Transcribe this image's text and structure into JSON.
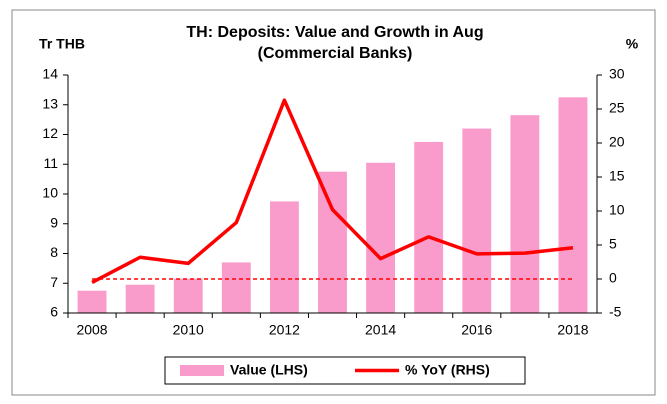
{
  "chart_data": {
    "type": "bar_line",
    "title": "TH: Deposits: Value and Growth in Aug",
    "subtitle": "(Commercial Banks)",
    "y_label": "Tr THB",
    "y2_label": "%",
    "categories": [
      "2008",
      null,
      "2010",
      null,
      "2012",
      null,
      "2014",
      null,
      "2016",
      null,
      "2018"
    ],
    "series": [
      {
        "name": "Value (LHS)",
        "type": "bar",
        "color": "#f99bcb",
        "axis": "y",
        "values": [
          6.75,
          6.95,
          7.15,
          7.7,
          9.75,
          10.75,
          11.05,
          11.75,
          12.2,
          12.65,
          13.25
        ]
      },
      {
        "name": "% YoY (RHS)",
        "type": "line",
        "color": "#ff0000",
        "axis": "y2",
        "values": [
          -0.5,
          3.2,
          2.3,
          8.3,
          26.3,
          10.2,
          3.0,
          6.2,
          3.7,
          3.8,
          4.6
        ]
      }
    ],
    "ylim": [
      6,
      14
    ],
    "yticks": [
      6,
      7,
      8,
      9,
      10,
      11,
      12,
      13,
      14
    ],
    "y2lim": [
      -5,
      30
    ],
    "y2ticks": [
      -5,
      0,
      5,
      10,
      15,
      20,
      25,
      30
    ],
    "reference_line_y2": 0,
    "legend": "bottom"
  }
}
